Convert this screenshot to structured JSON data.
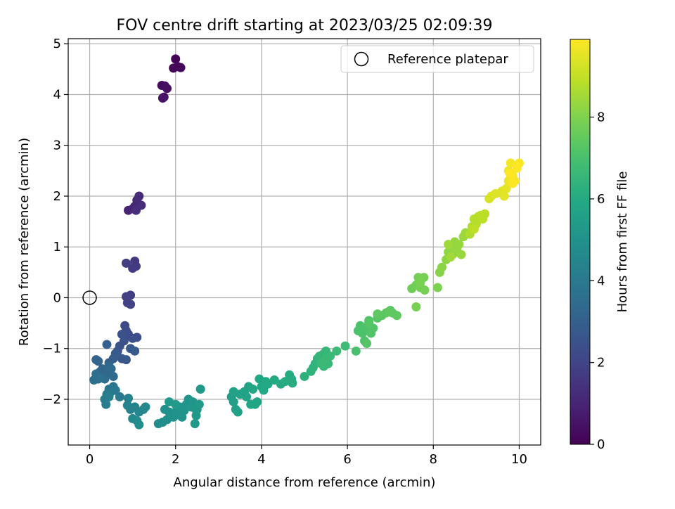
{
  "chart_data": {
    "type": "scatter",
    "title": "FOV centre drift starting at 2023/03/25 02:09:39",
    "xlabel": "Angular distance from reference (arcmin)",
    "ylabel": "Rotation from reference (arcmin)",
    "xlim": [
      -0.5,
      10.5
    ],
    "ylim": [
      -2.9,
      5.1
    ],
    "xticks": [
      0,
      2,
      4,
      6,
      8,
      10
    ],
    "yticks": [
      -2,
      -1,
      0,
      1,
      2,
      3,
      4,
      5
    ],
    "grid": true,
    "legend": {
      "position": "top-right",
      "entries": [
        "Reference platepar"
      ]
    },
    "colorbar": {
      "label": "Hours from first FF file",
      "range": [
        0,
        9.9
      ],
      "ticks": [
        0,
        2,
        4,
        6,
        8
      ],
      "colormap": "viridis"
    },
    "reference_point": {
      "x": 0,
      "y": 0
    },
    "points": [
      [
        2.0,
        4.7,
        0.05
      ],
      [
        1.95,
        4.52,
        0.1
      ],
      [
        2.05,
        4.55,
        0.15
      ],
      [
        2.12,
        4.53,
        0.2
      ],
      [
        1.68,
        4.18,
        0.3
      ],
      [
        1.75,
        4.17,
        0.35
      ],
      [
        1.8,
        4.12,
        0.4
      ],
      [
        1.73,
        3.95,
        0.45
      ],
      [
        1.7,
        3.93,
        0.5
      ],
      [
        0.9,
        1.72,
        1.0
      ],
      [
        1.0,
        1.75,
        1.05
      ],
      [
        1.05,
        1.8,
        1.1
      ],
      [
        1.1,
        1.92,
        1.15
      ],
      [
        1.15,
        2.0,
        1.2
      ],
      [
        1.2,
        1.82,
        1.25
      ],
      [
        1.08,
        1.72,
        1.3
      ],
      [
        1.05,
        0.72,
        1.6
      ],
      [
        1.08,
        0.62,
        1.65
      ],
      [
        1.0,
        0.58,
        1.7
      ],
      [
        0.85,
        0.68,
        1.75
      ],
      [
        0.95,
        0.05,
        1.8
      ],
      [
        0.85,
        0.02,
        1.85
      ],
      [
        0.88,
        -0.1,
        1.9
      ],
      [
        0.95,
        -0.13,
        1.95
      ],
      [
        0.82,
        -0.55,
        2.2
      ],
      [
        0.85,
        -0.65,
        2.25
      ],
      [
        0.9,
        -0.72,
        2.3
      ],
      [
        1.0,
        -0.8,
        2.35
      ],
      [
        1.1,
        -0.78,
        2.4
      ],
      [
        0.75,
        -0.72,
        2.45
      ],
      [
        0.8,
        -0.85,
        2.5
      ],
      [
        0.7,
        -0.95,
        2.55
      ],
      [
        0.65,
        -1.05,
        2.6
      ],
      [
        0.75,
        -1.2,
        2.65
      ],
      [
        0.85,
        -1.22,
        2.7
      ],
      [
        0.95,
        -1.0,
        2.75
      ],
      [
        1.05,
        -1.05,
        2.8
      ],
      [
        0.6,
        -1.1,
        2.85
      ],
      [
        0.55,
        -1.2,
        2.9
      ],
      [
        0.45,
        -1.28,
        2.95
      ],
      [
        0.4,
        -0.92,
        3.0
      ],
      [
        0.2,
        -1.25,
        3.1
      ],
      [
        0.15,
        -1.22,
        3.15
      ],
      [
        0.3,
        -1.4,
        3.2
      ],
      [
        0.25,
        -1.45,
        3.25
      ],
      [
        0.4,
        -1.48,
        3.3
      ],
      [
        0.45,
        -1.35,
        3.35
      ],
      [
        0.5,
        -1.4,
        3.4
      ],
      [
        0.55,
        -1.55,
        3.45
      ],
      [
        0.35,
        -1.6,
        3.5
      ],
      [
        0.2,
        -1.6,
        3.55
      ],
      [
        0.1,
        -1.62,
        3.6
      ],
      [
        0.15,
        -1.5,
        3.65
      ],
      [
        0.25,
        -1.58,
        3.7
      ],
      [
        0.45,
        -1.8,
        3.8
      ],
      [
        0.5,
        -1.85,
        3.85
      ],
      [
        0.55,
        -1.75,
        3.9
      ],
      [
        0.6,
        -1.82,
        3.95
      ],
      [
        0.7,
        -1.95,
        4.0
      ],
      [
        0.4,
        -1.9,
        4.05
      ],
      [
        0.35,
        -2.0,
        4.1
      ],
      [
        0.38,
        -2.1,
        4.15
      ],
      [
        0.45,
        -1.95,
        4.2
      ],
      [
        0.9,
        -1.98,
        4.3
      ],
      [
        0.88,
        -2.12,
        4.35
      ],
      [
        0.95,
        -2.2,
        4.4
      ],
      [
        1.05,
        -2.15,
        4.45
      ],
      [
        1.15,
        -2.25,
        4.5
      ],
      [
        1.25,
        -2.2,
        4.55
      ],
      [
        1.3,
        -2.15,
        4.6
      ],
      [
        1.0,
        -2.38,
        4.65
      ],
      [
        1.1,
        -2.42,
        4.7
      ],
      [
        1.15,
        -2.5,
        4.75
      ],
      [
        1.6,
        -2.48,
        4.8
      ],
      [
        1.7,
        -2.45,
        4.82
      ],
      [
        1.8,
        -2.4,
        4.85
      ],
      [
        1.75,
        -2.2,
        4.88
      ],
      [
        1.85,
        -2.25,
        4.9
      ],
      [
        1.9,
        -2.3,
        4.92
      ],
      [
        1.95,
        -2.35,
        4.95
      ],
      [
        2.0,
        -2.25,
        4.97
      ],
      [
        2.05,
        -2.3,
        5.0
      ],
      [
        2.15,
        -2.35,
        5.02
      ],
      [
        2.2,
        -2.22,
        5.05
      ],
      [
        2.1,
        -2.15,
        5.08
      ],
      [
        2.25,
        -2.1,
        5.1
      ],
      [
        2.3,
        -2.0,
        5.12
      ],
      [
        2.35,
        -2.15,
        5.15
      ],
      [
        2.4,
        -2.05,
        5.18
      ],
      [
        2.45,
        -2.18,
        5.2
      ],
      [
        2.5,
        -2.2,
        5.22
      ],
      [
        2.55,
        -2.1,
        5.25
      ],
      [
        2.48,
        -2.32,
        5.28
      ],
      [
        2.58,
        -1.8,
        5.3
      ],
      [
        1.85,
        -2.05,
        5.32
      ],
      [
        2.45,
        -2.48,
        5.35
      ],
      [
        2.0,
        -2.1,
        5.38
      ],
      [
        3.3,
        -1.95,
        5.5
      ],
      [
        3.35,
        -2.05,
        5.55
      ],
      [
        3.4,
        -2.2,
        5.6
      ],
      [
        3.45,
        -2.25,
        5.62
      ],
      [
        3.35,
        -1.85,
        5.65
      ],
      [
        3.5,
        -1.9,
        5.68
      ],
      [
        3.6,
        -1.85,
        5.7
      ],
      [
        3.7,
        -1.75,
        5.72
      ],
      [
        3.65,
        -1.95,
        5.75
      ],
      [
        3.75,
        -2.1,
        5.78
      ],
      [
        3.85,
        -2.1,
        5.8
      ],
      [
        3.9,
        -2.05,
        5.82
      ],
      [
        3.8,
        -1.8,
        5.85
      ],
      [
        3.95,
        -1.6,
        5.88
      ],
      [
        4.0,
        -1.75,
        5.9
      ],
      [
        4.05,
        -1.82,
        5.92
      ],
      [
        4.1,
        -1.65,
        5.95
      ],
      [
        4.15,
        -1.7,
        5.98
      ],
      [
        4.3,
        -1.62,
        6.0
      ],
      [
        4.45,
        -1.7,
        6.02
      ],
      [
        4.55,
        -1.65,
        6.05
      ],
      [
        4.65,
        -1.52,
        6.08
      ],
      [
        4.7,
        -1.6,
        6.1
      ],
      [
        4.72,
        -1.68,
        6.12
      ],
      [
        5.0,
        -1.55,
        6.3
      ],
      [
        5.15,
        -1.45,
        6.35
      ],
      [
        5.2,
        -1.38,
        6.4
      ],
      [
        5.25,
        -1.3,
        6.42
      ],
      [
        5.3,
        -1.2,
        6.45
      ],
      [
        5.35,
        -1.15,
        6.48
      ],
      [
        5.4,
        -1.25,
        6.5
      ],
      [
        5.45,
        -1.1,
        6.52
      ],
      [
        5.5,
        -1.05,
        6.55
      ],
      [
        5.45,
        -1.35,
        6.58
      ],
      [
        5.55,
        -1.3,
        6.6
      ],
      [
        5.6,
        -1.15,
        6.62
      ],
      [
        5.5,
        -1.2,
        6.65
      ],
      [
        5.4,
        -1.3,
        6.68
      ],
      [
        5.75,
        -1.05,
        6.7
      ],
      [
        5.95,
        -0.95,
        6.75
      ],
      [
        6.2,
        -1.05,
        7.0
      ],
      [
        6.25,
        -0.65,
        7.02
      ],
      [
        6.3,
        -0.55,
        7.05
      ],
      [
        6.35,
        -0.7,
        7.08
      ],
      [
        6.4,
        -0.85,
        7.1
      ],
      [
        6.45,
        -0.6,
        7.12
      ],
      [
        6.5,
        -0.45,
        7.15
      ],
      [
        6.55,
        -0.7,
        7.18
      ],
      [
        6.6,
        -0.6,
        7.2
      ],
      [
        6.45,
        -0.9,
        7.22
      ],
      [
        6.5,
        -0.5,
        7.25
      ],
      [
        6.7,
        -0.4,
        7.28
      ],
      [
        6.8,
        -0.35,
        7.3
      ],
      [
        6.9,
        -0.3,
        7.32
      ],
      [
        7.0,
        -0.25,
        7.35
      ],
      [
        7.05,
        -0.3,
        7.38
      ],
      [
        7.15,
        -0.35,
        7.4
      ],
      [
        6.95,
        -0.28,
        7.42
      ],
      [
        6.7,
        -0.32,
        7.45
      ],
      [
        7.5,
        0.18,
        7.7
      ],
      [
        7.6,
        0.25,
        7.75
      ],
      [
        7.65,
        0.4,
        7.78
      ],
      [
        7.7,
        0.2,
        7.8
      ],
      [
        7.78,
        0.4,
        7.82
      ],
      [
        7.8,
        0.15,
        7.85
      ],
      [
        7.6,
        -0.18,
        7.88
      ],
      [
        7.7,
        0.3,
        7.9
      ],
      [
        8.1,
        0.2,
        7.95
      ],
      [
        8.15,
        0.5,
        8.1
      ],
      [
        8.2,
        0.6,
        8.15
      ],
      [
        8.3,
        0.75,
        8.2
      ],
      [
        8.35,
        0.9,
        8.22
      ],
      [
        8.4,
        1.0,
        8.25
      ],
      [
        8.45,
        0.85,
        8.28
      ],
      [
        8.5,
        1.1,
        8.3
      ],
      [
        8.55,
        0.95,
        8.32
      ],
      [
        8.6,
        1.05,
        8.35
      ],
      [
        8.65,
        0.85,
        8.38
      ],
      [
        8.7,
        1.2,
        8.4
      ],
      [
        8.75,
        1.28,
        8.42
      ],
      [
        8.35,
        1.05,
        8.45
      ],
      [
        8.4,
        0.8,
        8.48
      ],
      [
        8.85,
        1.25,
        8.7
      ],
      [
        8.9,
        1.4,
        8.75
      ],
      [
        8.95,
        1.55,
        8.78
      ],
      [
        9.0,
        1.45,
        8.8
      ],
      [
        9.05,
        1.6,
        8.82
      ],
      [
        9.1,
        1.62,
        8.85
      ],
      [
        9.15,
        1.55,
        8.88
      ],
      [
        9.2,
        1.65,
        8.9
      ],
      [
        8.95,
        1.35,
        8.92
      ],
      [
        9.3,
        1.95,
        9.3
      ],
      [
        9.35,
        2.0,
        9.35
      ],
      [
        9.45,
        2.05,
        9.4
      ],
      [
        9.6,
        2.1,
        9.45
      ],
      [
        9.65,
        2.0,
        9.5
      ],
      [
        9.7,
        2.15,
        9.55
      ],
      [
        9.75,
        2.3,
        9.6
      ],
      [
        9.8,
        2.35,
        9.65
      ],
      [
        9.75,
        2.5,
        9.7
      ],
      [
        9.8,
        2.65,
        9.75
      ],
      [
        9.85,
        2.4,
        9.78
      ],
      [
        9.9,
        2.3,
        9.8
      ],
      [
        9.95,
        2.55,
        9.85
      ],
      [
        10.0,
        2.65,
        9.88
      ],
      [
        9.85,
        2.25,
        9.9
      ],
      [
        9.78,
        2.45,
        9.92
      ],
      [
        9.95,
        2.6,
        9.95
      ]
    ]
  }
}
